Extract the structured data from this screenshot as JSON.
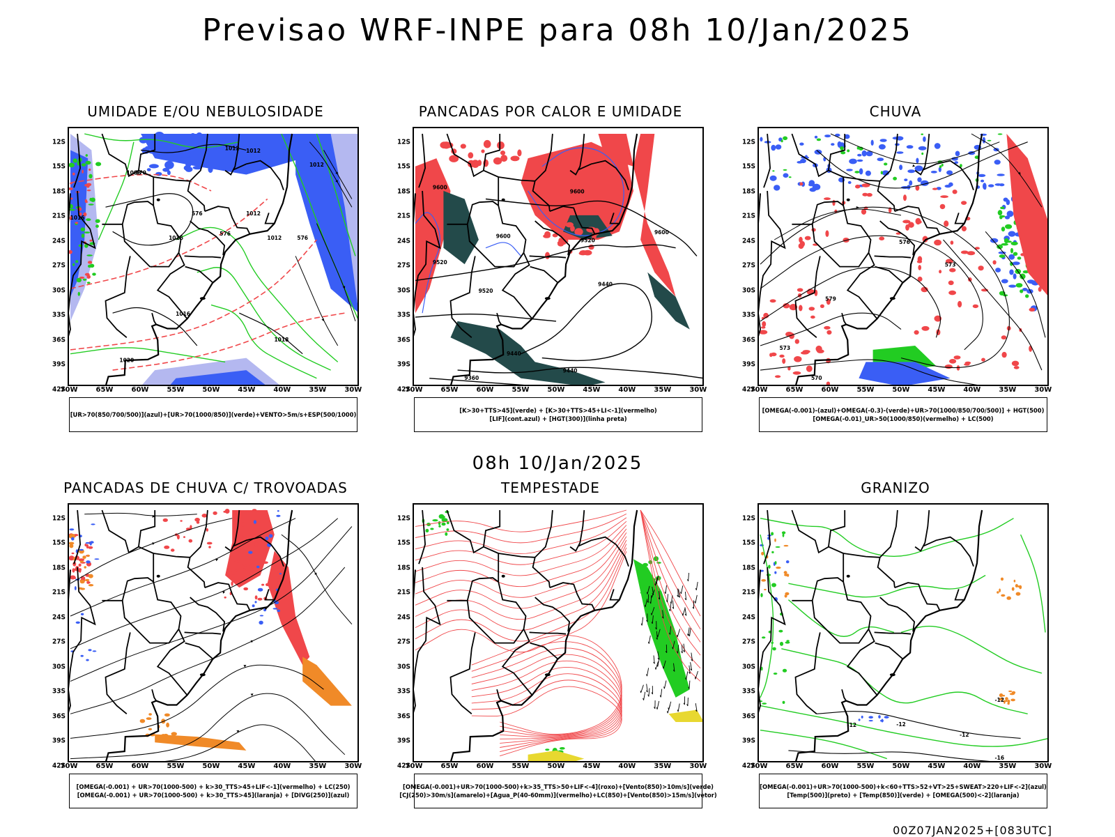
{
  "title": "Previsao WRF-INPE  para 08h 10/Jan/2025",
  "mid_title": "08h 10/Jan/2025",
  "footer": "00Z07JAN2025+[083UTC]",
  "axis": {
    "y_labels": [
      "12S",
      "15S",
      "18S",
      "21S",
      "24S",
      "27S",
      "30S",
      "33S",
      "36S",
      "39S",
      "42S"
    ],
    "x_labels": [
      "70W",
      "65W",
      "60W",
      "55W",
      "50W",
      "45W",
      "40W",
      "35W",
      "30W"
    ]
  },
  "colors": {
    "blue": "#3a5ef5",
    "light_blue": "#b4b8f0",
    "green": "#22cc22",
    "red": "#f0474a",
    "orange": "#f08a28",
    "dark_teal": "#234a4a",
    "yellow": "#e8d830",
    "purple": "#7a3fb0"
  },
  "panels": [
    {
      "title": "UMIDADE E/OU NEBULOSIDADE",
      "legend": [
        "[UR>70(850/700/500)](azul)+[UR>70(1000/850)](verde)+VENTO>5m/s+ESP(500/1000)"
      ],
      "contour_labels": [
        "1012",
        "1012",
        "1012",
        "1012",
        "1008",
        "1016",
        "1016",
        "1018",
        "1012",
        "1016",
        "1020",
        "570",
        "576",
        "576",
        "576"
      ]
    },
    {
      "title": "PANCADAS POR CALOR E UMIDADE",
      "legend": [
        "[K>30+TTS>45](verde) + [K>30+TTS>45+LI<-1](vermelho)",
        "[LIF](cont.azul) + [HGT(300)](linha preta)"
      ],
      "contour_labels": [
        "9600",
        "9600",
        "9600",
        "9600",
        "9520",
        "9520",
        "9520",
        "9440",
        "9440",
        "9440",
        "9360"
      ]
    },
    {
      "title": "CHUVA",
      "legend": [
        "[OMEGA(-0.001)-(azul)+OMEGA(-0.3)-(verde)+UR>70(1000/850/700/500)] + HGT(500)",
        "[OMEGA(-0.01)_UR>50(1000/850)(vermelho) + LC(500)"
      ],
      "contour_labels": [
        "579",
        "576",
        "573",
        "573",
        "570"
      ]
    },
    {
      "title": "PANCADAS DE CHUVA C/ TROVOADAS",
      "legend": [
        "[OMEGA(-0.001) + UR>70(1000-500) + k>30_TTS>45+LIF<-1](vermelho) + LC(250)",
        "[OMEGA(-0.001) + UR>70(1000-500) + k>30_TTS>45](laranja) + [DIVG(250)](azul)"
      ],
      "contour_labels": []
    },
    {
      "title": "TEMPESTADE",
      "legend": [
        "[OMEGA(-0.001)+UR>70(1000-500)+k>35_TTS>50+LIF<-4](roxo)+[Vento(850)>10m/s](verde)",
        "[CJ(250)>30m/s](amarelo)+[Agua_P(40-60mm)](vermelho)+LC(850)+[Vento(850)>15m/s](vetor)"
      ],
      "contour_labels": []
    },
    {
      "title": "GRANIZO",
      "legend": [
        "[OMEGA(-0.001)+UR>70(1000-500)+k<60+TTS>52+VT>25+SWEAT>220+LIF<-2](azul)",
        "[Temp(500)](preto) + [Temp(850)](verde) + [OMEGA(500)<-2](laranja)"
      ],
      "contour_labels": [
        "-12",
        "-12",
        "-12",
        "-12",
        "-16"
      ]
    }
  ]
}
